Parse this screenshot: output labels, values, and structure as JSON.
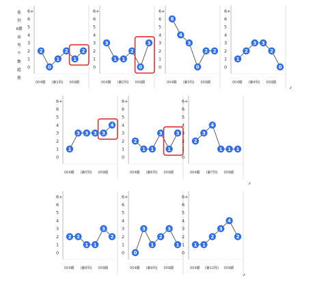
{
  "side_label": {
    "lines": [
      "各",
      "列",
      "6期",
      "出",
      "号",
      "个",
      "数",
      "趋",
      "势"
    ]
  },
  "colors": {
    "point": "#2f6fe6",
    "line": "#4a4a4a",
    "highlight": "#e03030",
    "frame": "#cfcfcf",
    "blue_tick": "#1f6fd0"
  },
  "chart_data": [
    {
      "type": "line",
      "y_tick_labels": [
        "0",
        "1",
        "2",
        "3",
        "4",
        "5",
        "6",
        "6+"
      ],
      "ylim": [
        0,
        7
      ],
      "x_tick_labels": [
        "004期",
        "(第1列)",
        "009期"
      ],
      "series": [
        {
          "values": [
            2,
            0,
            1,
            2,
            1,
            2
          ],
          "point_labels": [
            "2",
            "0",
            "1",
            "2",
            "1",
            "2"
          ]
        }
      ],
      "highlight_points": [
        4,
        5
      ]
    },
    {
      "type": "line",
      "y_tick_labels": [
        "0",
        "1",
        "2",
        "3",
        "4",
        "5",
        "6",
        "6+"
      ],
      "ylim": [
        0,
        7
      ],
      "x_tick_labels": [
        "004期",
        "(第2列)",
        "009期"
      ],
      "series": [
        {
          "values": [
            3,
            1,
            1,
            2,
            0,
            3
          ],
          "point_labels": [
            "3",
            "1",
            "1",
            "2",
            "0",
            "3"
          ]
        }
      ],
      "highlight_points": [
        4,
        5
      ]
    },
    {
      "type": "line",
      "y_tick_labels": [
        "0",
        "1",
        "2",
        "3",
        "4",
        "5",
        "6",
        "6+"
      ],
      "ylim": [
        0,
        7
      ],
      "x_tick_labels": [
        "004期",
        "(第3列)",
        "009期"
      ],
      "series": [
        {
          "values": [
            6,
            4,
            3,
            0,
            2,
            2
          ],
          "point_labels": [
            "6",
            "4",
            "3",
            "0",
            "2",
            "2"
          ]
        }
      ],
      "highlight_points": []
    },
    {
      "type": "line",
      "y_tick_labels": [
        "0",
        "1",
        "2",
        "3",
        "4",
        "5",
        "6",
        "6+"
      ],
      "ylim": [
        0,
        7
      ],
      "x_tick_labels": [
        "004期",
        "(第4列)",
        "009期"
      ],
      "series": [
        {
          "values": [
            1,
            2,
            3,
            3,
            2,
            0
          ],
          "point_labels": [
            "1",
            "2",
            "3",
            "3",
            "2",
            "0"
          ]
        }
      ],
      "highlight_points": []
    },
    {
      "type": "line",
      "y_tick_labels": [
        "0",
        "1",
        "2",
        "3",
        "4",
        "5",
        "6",
        "6+"
      ],
      "ylim": [
        0,
        7
      ],
      "x_tick_labels": [
        "004期",
        "(第5列)",
        "009期"
      ],
      "series": [
        {
          "values": [
            1,
            3,
            3,
            3,
            3,
            4
          ],
          "point_labels": [
            "1",
            "3",
            "3",
            "3",
            "3",
            "4"
          ]
        }
      ],
      "highlight_points": [
        4,
        5
      ]
    },
    {
      "type": "line",
      "y_tick_labels": [
        "0",
        "1",
        "2",
        "3",
        "4",
        "5",
        "6",
        "6+"
      ],
      "ylim": [
        0,
        7
      ],
      "x_tick_labels": [
        "004期",
        "(第6列)",
        "009期"
      ],
      "series": [
        {
          "values": [
            2,
            1,
            1,
            3,
            1,
            3
          ],
          "point_labels": [
            "2",
            "1",
            "1",
            "3",
            "1",
            "3"
          ]
        }
      ],
      "highlight_points": [
        4,
        5
      ]
    },
    {
      "type": "line",
      "y_tick_labels": [
        "0",
        "1",
        "2",
        "3",
        "4",
        "5",
        "6",
        "6+"
      ],
      "ylim": [
        0,
        7
      ],
      "x_tick_labels": [
        "004期",
        "(第7列)",
        "009期"
      ],
      "series": [
        {
          "values": [
            2,
            3,
            4,
            1,
            1,
            1
          ],
          "point_labels": [
            "2",
            "3",
            "4",
            "1",
            "1",
            "1"
          ]
        }
      ],
      "highlight_points": []
    },
    {
      "type": "line",
      "y_tick_labels": [
        "0",
        "1",
        "2",
        "3",
        "4",
        "5",
        "6",
        "6+"
      ],
      "ylim": [
        0,
        7
      ],
      "x_tick_labels": [
        "004期",
        "(第8列)",
        "009期"
      ],
      "series": [
        {
          "values": [
            2,
            2,
            1,
            1,
            3,
            2
          ],
          "point_labels": [
            "2",
            "2",
            "1",
            "1",
            "3",
            "2"
          ]
        }
      ],
      "highlight_points": []
    },
    {
      "type": "line",
      "y_tick_labels": [
        "0",
        "1",
        "2",
        "3",
        "4",
        "5",
        "6",
        "6+"
      ],
      "ylim": [
        0,
        7
      ],
      "x_tick_labels": [
        "004期",
        "(第9列)",
        "009期"
      ],
      "series": [
        {
          "values": [
            0,
            3,
            1,
            2,
            3,
            1
          ],
          "point_labels": [
            "0",
            "3",
            "1",
            "2",
            "3",
            "1"
          ]
        }
      ],
      "highlight_points": []
    },
    {
      "type": "line",
      "y_tick_labels": [
        "0",
        "1",
        "2",
        "3",
        "4",
        "5",
        "6",
        "6+"
      ],
      "ylim": [
        0,
        7
      ],
      "x_tick_labels": [
        "004期",
        "(第10列)",
        "009期"
      ],
      "series": [
        {
          "values": [
            1,
            1,
            2,
            3,
            4,
            2
          ],
          "point_labels": [
            "1",
            "1",
            "2",
            "3",
            "4",
            "2"
          ]
        }
      ],
      "highlight_points": []
    }
  ]
}
